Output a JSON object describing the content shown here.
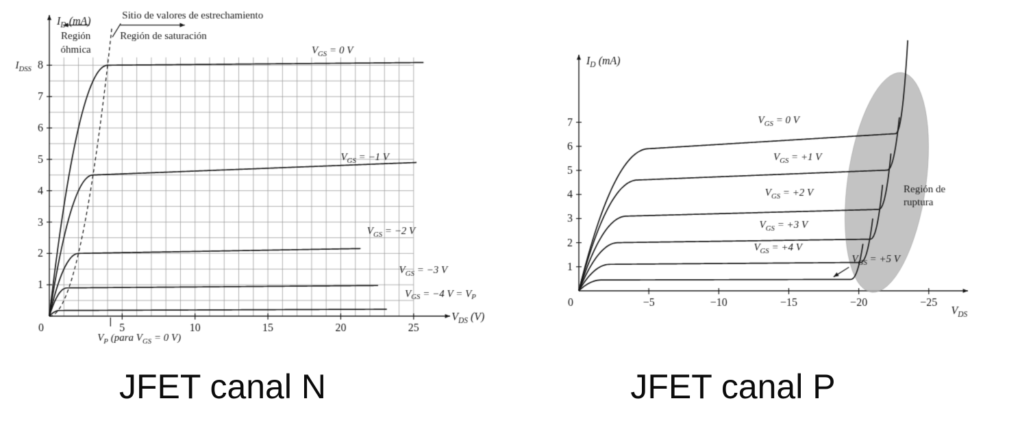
{
  "captions": {
    "left": "JFET canal N",
    "right": "JFET canal P"
  },
  "colors": {
    "ink": "#161616",
    "grid": "#9a9a9a",
    "breakdown_fill": "#b4b4b4"
  },
  "chart_data": [
    {
      "id": "jfet-n",
      "type": "line",
      "title": "JFET canal N",
      "xlabel": "V_{DS} (V)",
      "ylabel": "I_{D} (mA)",
      "xlim": [
        0,
        27.5
      ],
      "ylim": [
        0,
        9.6
      ],
      "xticks": [
        5,
        10,
        15,
        20,
        25
      ],
      "yticks": [
        1,
        2,
        3,
        4,
        5,
        6,
        7,
        8
      ],
      "origin_label": "0",
      "xlabel_pos": {
        "x": 27.6,
        "dy": 6
      },
      "grid": {
        "x_max": 25,
        "x_step": 1,
        "y_max": 8.25,
        "y_step": 0.5
      },
      "idss": {
        "text": "I_{DSS}",
        "y": 8
      },
      "pinch_locus": {
        "x_max": 4.31,
        "dash": [
          5,
          4
        ]
      },
      "series": [
        {
          "vgs_V": 0,
          "label": "V_{GS} = 0 V",
          "isat_mA": 8.0,
          "knee_V": 4.0,
          "slope": 0.0005,
          "x_end": 25.7,
          "label_x": 18.0,
          "label_y": 8.38
        },
        {
          "vgs_V": -1,
          "label": "V_{GS} = −1 V",
          "isat_mA": 4.5,
          "knee_V": 3.0,
          "slope": 0.004,
          "x_end": 25.3,
          "label_x": 20.0,
          "label_y": 4.98
        },
        {
          "vgs_V": -2,
          "label": "V_{GS} = −2 V",
          "isat_mA": 2.0,
          "knee_V": 2.0,
          "slope": 0.004,
          "x_end": 21.4,
          "label_x": 21.8,
          "label_y": 2.62
        },
        {
          "vgs_V": -3,
          "label": "V_{GS} = −3 V",
          "isat_mA": 0.9,
          "knee_V": 1.2,
          "slope": 0.004,
          "x_end": 22.6,
          "label_x": 24.0,
          "label_y": 1.38
        },
        {
          "vgs_V": -4,
          "label": "V_{GS} = −4 V = V_{P}",
          "isat_mA": 0.18,
          "knee_V": 0.7,
          "slope": 0.01,
          "x_end": 23.2,
          "label_x": 24.4,
          "label_y": 0.62
        }
      ],
      "annotations": [
        {
          "kind": "text",
          "text": "Sitio de valores de estrechamiento",
          "x": 5.0,
          "y": 9.5
        },
        {
          "kind": "line",
          "x1": 4.9,
          "y1": 9.33,
          "x2": 4.33,
          "y2": 8.9
        },
        {
          "kind": "arrow",
          "x1": 2.75,
          "y1": 9.28,
          "x2": 0.95,
          "y2": 9.28
        },
        {
          "kind": "text",
          "text": "Región",
          "x": 0.8,
          "y": 8.83
        },
        {
          "kind": "text",
          "text": "óhmica",
          "x": 0.78,
          "y": 8.4
        },
        {
          "kind": "arrow",
          "x1": 4.85,
          "y1": 9.28,
          "x2": 9.3,
          "y2": 9.28
        },
        {
          "kind": "text",
          "text": "Región de saturación",
          "x": 4.85,
          "y": 8.83
        }
      ],
      "below_axis": {
        "text": "V_{P} (para V_{GS} = 0 V)",
        "x": 3.3,
        "dy": 36,
        "tick_x": 4.2
      }
    },
    {
      "id": "jfet-p",
      "type": "line",
      "title": "JFET canal P",
      "xlabel": "V_{DS}",
      "ylabel": "I_{D} (mA)",
      "xlim": [
        0,
        -27.8
      ],
      "ylim": [
        0,
        9.8
      ],
      "xticks": [
        -5,
        -10,
        -15,
        -20,
        -25
      ],
      "yticks": [
        1,
        2,
        3,
        4,
        5,
        6,
        7
      ],
      "origin_label": "0",
      "xlabel_pos": {
        "x": -26.6,
        "dy": 34
      },
      "breakdown_region": {
        "cx": -22.0,
        "cy": 4.5,
        "rx": 2.8,
        "ry": 4.6,
        "rotation_deg": 8,
        "label": [
          "Región de",
          "ruptura"
        ],
        "label_x": -23.2,
        "label_y": 4.1
      },
      "series": [
        {
          "vgs_V": 0,
          "label": "V_{GS} = 0 V",
          "isat_mA": 5.9,
          "knee_V": 5.0,
          "slope": 0.006,
          "bd_x": 22.6,
          "bd_top": 10.4,
          "label_x": -12.8,
          "label_y": 6.95
        },
        {
          "vgs_V": 1,
          "label": "V_{GS} = +1 V",
          "isat_mA": 4.6,
          "knee_V": 4.2,
          "slope": 0.005,
          "bd_x": 22.0,
          "bd_top": 7.2,
          "label_x": -13.9,
          "label_y": 5.42
        },
        {
          "vgs_V": 2,
          "label": "V_{GS} = +2 V",
          "isat_mA": 3.1,
          "knee_V": 3.4,
          "slope": 0.005,
          "bd_x": 21.4,
          "bd_top": 5.7,
          "label_x": -13.3,
          "label_y": 3.95
        },
        {
          "vgs_V": 3,
          "label": "V_{GS} = +3 V",
          "isat_mA": 2.0,
          "knee_V": 2.8,
          "slope": 0.004,
          "bd_x": 20.8,
          "bd_top": 4.4,
          "label_x": -12.9,
          "label_y": 2.62
        },
        {
          "vgs_V": 4,
          "label": "V_{GS} = +4 V",
          "isat_mA": 1.1,
          "knee_V": 2.2,
          "slope": 0.004,
          "bd_x": 20.1,
          "bd_top": 3.0,
          "label_x": -12.5,
          "label_y": 1.68
        },
        {
          "vgs_V": 5,
          "label": "V_{GS} = +5 V",
          "isat_mA": 0.45,
          "knee_V": 1.6,
          "slope": 0.003,
          "bd_x": 19.4,
          "bd_top": 1.95,
          "label_x": -19.5,
          "label_y": 1.18
        }
      ],
      "leader": {
        "x1": -19.3,
        "y1": 0.98,
        "x2": -18.2,
        "y2": 0.58
      }
    }
  ]
}
